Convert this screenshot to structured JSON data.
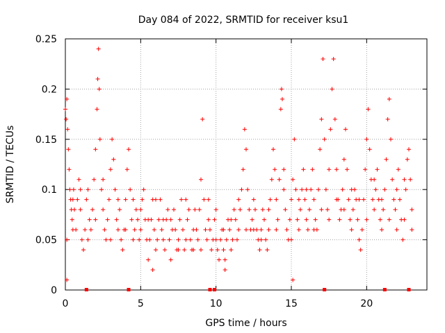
{
  "chart_data": {
    "type": "scatter",
    "title": "Day 084 of 2022, SRMTID for receiver ksu1",
    "xlabel": "GPS time / hours",
    "ylabel": "SRMTID / TECUs",
    "xlim": [
      0,
      24
    ],
    "ylim": [
      0,
      0.25
    ],
    "x_ticks": [
      0,
      5,
      10,
      15,
      20
    ],
    "x_tick_labels": [
      "0",
      "5",
      "10",
      "15",
      "20"
    ],
    "y_ticks": [
      0,
      0.05,
      0.1,
      0.15,
      0.2,
      0.25
    ],
    "y_tick_labels": [
      "0",
      "0.05",
      "0.1",
      "0.15",
      "0.2",
      "0.25"
    ],
    "grid": true,
    "marker": "+",
    "series": [
      {
        "name": "SRMTID",
        "color": "#ff0000",
        "points": [
          [
            0.0,
            0.18
          ],
          [
            0.05,
            0.17
          ],
          [
            0.1,
            0.19
          ],
          [
            0.15,
            0.16
          ],
          [
            0.2,
            0.14
          ],
          [
            0.25,
            0.12
          ],
          [
            0.3,
            0.1
          ],
          [
            0.35,
            0.09
          ],
          [
            0.4,
            0.08
          ],
          [
            0.45,
            0.07
          ],
          [
            0.5,
            0.09
          ],
          [
            0.55,
            0.1
          ],
          [
            0.6,
            0.08
          ],
          [
            0.7,
            0.06
          ],
          [
            0.8,
            0.09
          ],
          [
            0.9,
            0.11
          ],
          [
            1.0,
            0.08
          ],
          [
            1.1,
            0.05
          ],
          [
            1.2,
            0.04
          ],
          [
            1.3,
            0.06
          ],
          [
            1.4,
            0.09
          ],
          [
            1.5,
            0.1
          ],
          [
            1.6,
            0.07
          ],
          [
            1.7,
            0.06
          ],
          [
            1.8,
            0.08
          ],
          [
            1.9,
            0.11
          ],
          [
            2.0,
            0.14
          ],
          [
            2.1,
            0.18
          ],
          [
            2.15,
            0.21
          ],
          [
            2.2,
            0.24
          ],
          [
            2.25,
            0.2
          ],
          [
            2.3,
            0.15
          ],
          [
            2.4,
            0.1
          ],
          [
            2.5,
            0.08
          ],
          [
            2.6,
            0.06
          ],
          [
            2.7,
            0.05
          ],
          [
            2.8,
            0.07
          ],
          [
            2.9,
            0.09
          ],
          [
            3.0,
            0.12
          ],
          [
            3.1,
            0.15
          ],
          [
            3.2,
            0.13
          ],
          [
            3.3,
            0.1
          ],
          [
            3.4,
            0.07
          ],
          [
            3.5,
            0.06
          ],
          [
            3.6,
            0.08
          ],
          [
            3.7,
            0.05
          ],
          [
            3.8,
            0.04
          ],
          [
            3.9,
            0.06
          ],
          [
            4.0,
            0.09
          ],
          [
            4.1,
            0.12
          ],
          [
            4.2,
            0.14
          ],
          [
            4.3,
            0.1
          ],
          [
            4.4,
            0.07
          ],
          [
            4.5,
            0.05
          ],
          [
            4.6,
            0.06
          ],
          [
            4.7,
            0.08
          ],
          [
            4.8,
            0.07
          ],
          [
            4.9,
            0.05
          ],
          [
            5.0,
            0.06
          ],
          [
            5.1,
            0.09
          ],
          [
            5.2,
            0.1
          ],
          [
            5.3,
            0.07
          ],
          [
            5.4,
            0.05
          ],
          [
            5.5,
            0.03
          ],
          [
            5.6,
            0.05
          ],
          [
            5.7,
            0.07
          ],
          [
            5.8,
            0.09
          ],
          [
            5.9,
            0.06
          ],
          [
            6.0,
            0.04
          ],
          [
            6.1,
            0.05
          ],
          [
            6.2,
            0.07
          ],
          [
            6.3,
            0.09
          ],
          [
            6.4,
            0.06
          ],
          [
            6.5,
            0.05
          ],
          [
            6.6,
            0.04
          ],
          [
            6.7,
            0.07
          ],
          [
            6.8,
            0.08
          ],
          [
            6.9,
            0.05
          ],
          [
            7.0,
            0.03
          ],
          [
            7.1,
            0.06
          ],
          [
            7.2,
            0.08
          ],
          [
            7.3,
            0.06
          ],
          [
            7.4,
            0.04
          ],
          [
            7.5,
            0.05
          ],
          [
            7.6,
            0.07
          ],
          [
            7.7,
            0.09
          ],
          [
            7.8,
            0.06
          ],
          [
            7.9,
            0.04
          ],
          [
            8.0,
            0.05
          ],
          [
            8.1,
            0.07
          ],
          [
            8.2,
            0.08
          ],
          [
            8.3,
            0.05
          ],
          [
            8.4,
            0.04
          ],
          [
            8.5,
            0.06
          ],
          [
            8.6,
            0.08
          ],
          [
            8.7,
            0.06
          ],
          [
            8.8,
            0.05
          ],
          [
            8.9,
            0.08
          ],
          [
            9.0,
            0.11
          ],
          [
            9.1,
            0.17
          ],
          [
            9.2,
            0.09
          ],
          [
            9.3,
            0.06
          ],
          [
            9.4,
            0.05
          ],
          [
            9.5,
            0.07
          ],
          [
            9.6,
            0.06
          ],
          [
            9.7,
            0.04
          ],
          [
            9.8,
            0.05
          ],
          [
            9.9,
            0.07
          ],
          [
            10.0,
            0.05
          ],
          [
            10.1,
            0.04
          ],
          [
            10.2,
            0.03
          ],
          [
            10.3,
            0.05
          ],
          [
            10.4,
            0.06
          ],
          [
            10.5,
            0.04
          ],
          [
            10.6,
            0.03
          ],
          [
            10.7,
            0.05
          ],
          [
            10.8,
            0.07
          ],
          [
            10.9,
            0.06
          ],
          [
            11.0,
            0.04
          ],
          [
            11.1,
            0.05
          ],
          [
            11.2,
            0.08
          ],
          [
            11.3,
            0.07
          ],
          [
            11.4,
            0.05
          ],
          [
            11.5,
            0.06
          ],
          [
            11.6,
            0.08
          ],
          [
            11.7,
            0.1
          ],
          [
            11.8,
            0.12
          ],
          [
            11.9,
            0.16
          ],
          [
            12.0,
            0.14
          ],
          [
            12.1,
            0.1
          ],
          [
            12.2,
            0.08
          ],
          [
            12.3,
            0.06
          ],
          [
            12.4,
            0.07
          ],
          [
            12.5,
            0.09
          ],
          [
            12.6,
            0.08
          ],
          [
            12.7,
            0.06
          ],
          [
            12.8,
            0.05
          ],
          [
            12.9,
            0.04
          ],
          [
            13.0,
            0.06
          ],
          [
            13.1,
            0.08
          ],
          [
            13.2,
            0.07
          ],
          [
            13.3,
            0.05
          ],
          [
            13.4,
            0.04
          ],
          [
            13.5,
            0.06
          ],
          [
            13.6,
            0.09
          ],
          [
            13.7,
            0.11
          ],
          [
            13.8,
            0.14
          ],
          [
            13.9,
            0.12
          ],
          [
            14.0,
            0.09
          ],
          [
            14.1,
            0.07
          ],
          [
            14.2,
            0.11
          ],
          [
            14.3,
            0.18
          ],
          [
            14.35,
            0.2
          ],
          [
            14.4,
            0.19
          ],
          [
            14.5,
            0.12
          ],
          [
            14.6,
            0.08
          ],
          [
            14.7,
            0.06
          ],
          [
            14.8,
            0.05
          ],
          [
            14.9,
            0.07
          ],
          [
            15.0,
            0.09
          ],
          [
            15.1,
            0.11
          ],
          [
            15.2,
            0.15
          ],
          [
            15.3,
            0.1
          ],
          [
            15.4,
            0.07
          ],
          [
            15.5,
            0.06
          ],
          [
            15.6,
            0.08
          ],
          [
            15.7,
            0.1
          ],
          [
            15.8,
            0.12
          ],
          [
            15.9,
            0.09
          ],
          [
            16.0,
            0.07
          ],
          [
            16.1,
            0.06
          ],
          [
            16.2,
            0.08
          ],
          [
            16.3,
            0.1
          ],
          [
            16.4,
            0.12
          ],
          [
            16.5,
            0.09
          ],
          [
            16.6,
            0.07
          ],
          [
            16.7,
            0.06
          ],
          [
            16.8,
            0.1
          ],
          [
            16.9,
            0.14
          ],
          [
            17.0,
            0.17
          ],
          [
            17.1,
            0.23
          ],
          [
            17.2,
            0.15
          ],
          [
            17.3,
            0.1
          ],
          [
            17.4,
            0.08
          ],
          [
            17.5,
            0.12
          ],
          [
            17.6,
            0.16
          ],
          [
            17.7,
            0.2
          ],
          [
            17.8,
            0.23
          ],
          [
            17.9,
            0.17
          ],
          [
            18.0,
            0.12
          ],
          [
            18.1,
            0.09
          ],
          [
            18.2,
            0.07
          ],
          [
            18.3,
            0.08
          ],
          [
            18.4,
            0.1
          ],
          [
            18.5,
            0.13
          ],
          [
            18.6,
            0.16
          ],
          [
            18.7,
            0.12
          ],
          [
            18.8,
            0.09
          ],
          [
            18.9,
            0.07
          ],
          [
            19.0,
            0.06
          ],
          [
            19.1,
            0.08
          ],
          [
            19.2,
            0.1
          ],
          [
            19.3,
            0.09
          ],
          [
            19.4,
            0.07
          ],
          [
            19.5,
            0.05
          ],
          [
            19.6,
            0.04
          ],
          [
            19.7,
            0.06
          ],
          [
            19.8,
            0.09
          ],
          [
            19.9,
            0.12
          ],
          [
            20.0,
            0.15
          ],
          [
            20.1,
            0.18
          ],
          [
            20.2,
            0.14
          ],
          [
            20.3,
            0.11
          ],
          [
            20.4,
            0.09
          ],
          [
            20.5,
            0.08
          ],
          [
            20.6,
            0.1
          ],
          [
            20.7,
            0.12
          ],
          [
            20.8,
            0.09
          ],
          [
            20.9,
            0.07
          ],
          [
            21.0,
            0.06
          ],
          [
            21.1,
            0.08
          ],
          [
            21.2,
            0.1
          ],
          [
            21.3,
            0.13
          ],
          [
            21.4,
            0.17
          ],
          [
            21.5,
            0.19
          ],
          [
            21.6,
            0.15
          ],
          [
            21.7,
            0.11
          ],
          [
            21.8,
            0.09
          ],
          [
            21.9,
            0.08
          ],
          [
            22.0,
            0.1
          ],
          [
            22.1,
            0.12
          ],
          [
            22.2,
            0.09
          ],
          [
            22.3,
            0.07
          ],
          [
            22.4,
            0.05
          ],
          [
            22.5,
            0.07
          ],
          [
            22.6,
            0.1
          ],
          [
            22.7,
            0.13
          ],
          [
            22.8,
            0.14
          ],
          [
            22.9,
            0.11
          ],
          [
            23.0,
            0.08
          ],
          [
            0.1,
            0.05
          ],
          [
            0.5,
            0.06
          ],
          [
            1.0,
            0.1
          ],
          [
            1.5,
            0.05
          ],
          [
            2.0,
            0.07
          ],
          [
            2.5,
            0.11
          ],
          [
            3.0,
            0.05
          ],
          [
            3.5,
            0.09
          ],
          [
            4.0,
            0.06
          ],
          [
            4.5,
            0.09
          ],
          [
            5.0,
            0.08
          ],
          [
            5.5,
            0.07
          ],
          [
            6.0,
            0.09
          ],
          [
            6.5,
            0.07
          ],
          [
            7.0,
            0.07
          ],
          [
            7.5,
            0.04
          ],
          [
            8.0,
            0.09
          ],
          [
            8.5,
            0.04
          ],
          [
            9.0,
            0.04
          ],
          [
            9.5,
            0.09
          ],
          [
            10.0,
            0.08
          ],
          [
            10.5,
            0.06
          ],
          [
            11.0,
            0.07
          ],
          [
            11.5,
            0.09
          ],
          [
            12.0,
            0.06
          ],
          [
            12.5,
            0.06
          ],
          [
            13.0,
            0.05
          ],
          [
            13.5,
            0.08
          ],
          [
            14.0,
            0.06
          ],
          [
            14.5,
            0.1
          ],
          [
            15.0,
            0.05
          ],
          [
            15.5,
            0.09
          ],
          [
            16.0,
            0.1
          ],
          [
            16.5,
            0.06
          ],
          [
            17.0,
            0.08
          ],
          [
            17.5,
            0.07
          ],
          [
            18.0,
            0.09
          ],
          [
            18.5,
            0.08
          ],
          [
            19.0,
            0.1
          ],
          [
            19.5,
            0.09
          ],
          [
            20.0,
            0.07
          ],
          [
            20.5,
            0.11
          ],
          [
            21.0,
            0.09
          ],
          [
            21.5,
            0.07
          ],
          [
            22.0,
            0.06
          ],
          [
            22.5,
            0.11
          ],
          [
            23.0,
            0.06
          ],
          [
            15.1,
            0.01
          ],
          [
            10.6,
            0.02
          ],
          [
            5.8,
            0.02
          ],
          [
            0.1,
            0.01
          ]
        ]
      }
    ],
    "baseline_markers_x": [
      1.4,
      4.2,
      9.6,
      9.9,
      17.2,
      21.2,
      22.8
    ]
  }
}
